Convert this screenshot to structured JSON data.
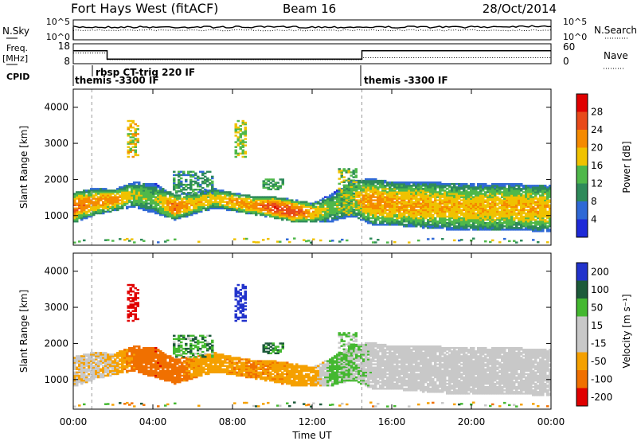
{
  "header": {
    "title": "Fort Hays West (fitACF)",
    "beam": "Beam 16",
    "date": "28/Oct/2014"
  },
  "noise_panel": {
    "left_label": "N.Sky",
    "right_label": "N.Search",
    "left_ticks": [
      "10^5",
      "10^0"
    ],
    "right_ticks": [
      "10^5",
      "10^0"
    ]
  },
  "freq_panel": {
    "left_label_line1": "Freq.",
    "left_label_line2": "[MHz]",
    "right_label": "Nave",
    "left_ticks": [
      "18",
      "8"
    ],
    "right_ticks": [
      "60",
      "0"
    ],
    "cpid_label": "CPID",
    "programs": [
      {
        "name": "themis -3300 IF",
        "start": "00:00"
      },
      {
        "name": "rbsp CT-trig 220 IF",
        "start": "00:56"
      },
      {
        "name": "themis -3300 IF",
        "start": "14:30"
      }
    ]
  },
  "power_panel": {
    "ylabel": "Slant Range [km]",
    "y_ticks": [
      "1000",
      "2000",
      "3000",
      "4000"
    ],
    "colorbar_label": "Power [dB]",
    "colorbar_ticks": [
      "4",
      "8",
      "12",
      "16",
      "20",
      "24",
      "28"
    ]
  },
  "velocity_panel": {
    "ylabel": "Slant Range [km]",
    "y_ticks": [
      "1000",
      "2000",
      "3000",
      "4000"
    ],
    "colorbar_label": "Velocity [m s⁻¹]",
    "colorbar_ticks": [
      "200",
      "100",
      "50",
      "15",
      "-15",
      "-50",
      "-100",
      "-200"
    ]
  },
  "x_axis": {
    "label": "Time UT",
    "ticks": [
      "00:00",
      "04:00",
      "08:00",
      "12:00",
      "16:00",
      "20:00",
      "00:00"
    ]
  },
  "chart_data": {
    "type": "heatmap",
    "x_range_hours": [
      0,
      24
    ],
    "y_range_km": [
      180,
      4500
    ],
    "power_colors": [
      "#1e2ad8",
      "#2f69d6",
      "#2e8a5a",
      "#4fb84a",
      "#f0c200",
      "#f58a00",
      "#e84a1a",
      "#e00000"
    ],
    "velocity_colors": [
      "#2233cc",
      "#1d5a3a",
      "#44b830",
      "#c8c8c8",
      "#c8c8c8",
      "#f5a000",
      "#f07000",
      "#e00000"
    ],
    "mode_switch_hours": [
      0.93,
      14.5
    ],
    "frequency_mhz": [
      {
        "start": 0.0,
        "end": 1.7,
        "value": 14.5
      },
      {
        "start": 1.7,
        "end": 14.5,
        "value": 10.3
      },
      {
        "start": 14.5,
        "end": 24.0,
        "value": 14.5
      }
    ],
    "nave": [
      {
        "start": 0.0,
        "end": 1.7,
        "value": 32
      },
      {
        "start": 1.7,
        "end": 14.5,
        "value": 12
      },
      {
        "start": 14.5,
        "end": 24.0,
        "value": 18
      }
    ],
    "main_band": [
      {
        "t": 0.0,
        "range": 1200,
        "width": 420,
        "power": 24,
        "vel": -10
      },
      {
        "t": 1.0,
        "range": 1350,
        "width": 380,
        "power": 21,
        "vel": -5
      },
      {
        "t": 2.0,
        "range": 1400,
        "width": 300,
        "power": 22,
        "vel": -20
      },
      {
        "t": 3.0,
        "range": 1550,
        "width": 350,
        "power": 16,
        "vel": -60
      },
      {
        "t": 4.0,
        "range": 1450,
        "width": 420,
        "power": 14,
        "vel": -90
      },
      {
        "t": 5.0,
        "range": 1200,
        "width": 360,
        "power": 24,
        "vel": -80
      },
      {
        "t": 6.0,
        "range": 1300,
        "width": 300,
        "power": 19,
        "vel": -40
      },
      {
        "t": 7.0,
        "range": 1450,
        "width": 280,
        "power": 18,
        "vel": -30
      },
      {
        "t": 8.0,
        "range": 1350,
        "width": 260,
        "power": 21,
        "vel": -40
      },
      {
        "t": 9.0,
        "range": 1250,
        "width": 260,
        "power": 22,
        "vel": -50
      },
      {
        "t": 10.0,
        "range": 1200,
        "width": 300,
        "power": 27,
        "vel": -40
      },
      {
        "t": 11.0,
        "range": 1100,
        "width": 320,
        "power": 26,
        "vel": -35
      },
      {
        "t": 12.0,
        "range": 1050,
        "width": 280,
        "power": 20,
        "vel": -30
      },
      {
        "t": 13.0,
        "range": 1200,
        "width": 400,
        "power": 14,
        "vel": 30
      },
      {
        "t": 14.0,
        "range": 1450,
        "width": 500,
        "power": 18,
        "vel": 20
      },
      {
        "t": 15.0,
        "range": 1350,
        "width": 650,
        "power": 22,
        "vel": 0
      },
      {
        "t": 16.0,
        "range": 1300,
        "width": 600,
        "power": 21,
        "vel": 0
      },
      {
        "t": 18.0,
        "range": 1250,
        "width": 650,
        "power": 20,
        "vel": 0
      },
      {
        "t": 20.0,
        "range": 1200,
        "width": 650,
        "power": 19,
        "vel": 0
      },
      {
        "t": 22.0,
        "range": 1200,
        "width": 650,
        "power": 20,
        "vel": 0
      },
      {
        "t": 24.0,
        "range": 1180,
        "width": 650,
        "power": 19,
        "vel": 0
      }
    ],
    "patches": [
      {
        "t0": 2.7,
        "t1": 3.2,
        "r0": 2600,
        "r1": 3600,
        "power": 18,
        "vel": -150
      },
      {
        "t0": 8.1,
        "t1": 8.6,
        "r0": 2600,
        "r1": 3600,
        "power": 16,
        "vel": 180
      },
      {
        "t0": 5.0,
        "t1": 7.0,
        "r0": 1600,
        "r1": 2200,
        "power": 10,
        "vel": 40
      },
      {
        "t0": 9.5,
        "t1": 10.5,
        "r0": 1700,
        "r1": 2000,
        "power": 12,
        "vel": 60
      },
      {
        "t0": 13.3,
        "t1": 14.2,
        "r0": 1000,
        "r1": 2300,
        "power": 14,
        "vel": 20
      }
    ]
  }
}
